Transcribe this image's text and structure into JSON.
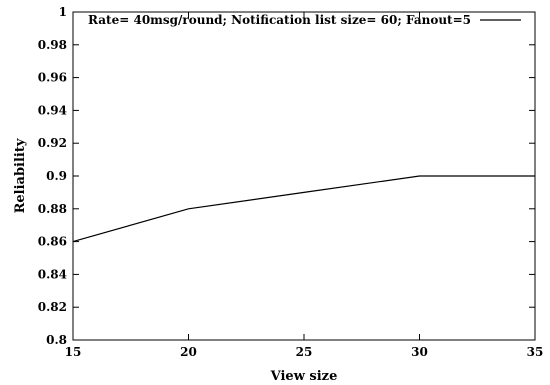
{
  "chart_data": {
    "type": "line",
    "title": "",
    "xlabel": "View size",
    "ylabel": "Reliability",
    "xlim": [
      15,
      35
    ],
    "ylim": [
      0.8,
      1
    ],
    "x_ticks": [
      "15",
      "20",
      "25",
      "30",
      "35"
    ],
    "y_ticks": [
      "0.8",
      "0.82",
      "0.84",
      "0.86",
      "0.88",
      "0.9",
      "0.92",
      "0.94",
      "0.96",
      "0.98",
      "1"
    ],
    "grid": false,
    "legend_position": "top-right",
    "series": [
      {
        "name": "Rate= 40msg/round; Notification list size= 60; Fanout=5",
        "color": "#000000",
        "x": [
          15,
          20,
          25,
          30,
          35
        ],
        "y": [
          0.86,
          0.88,
          0.89,
          0.9,
          0.9
        ]
      }
    ]
  }
}
